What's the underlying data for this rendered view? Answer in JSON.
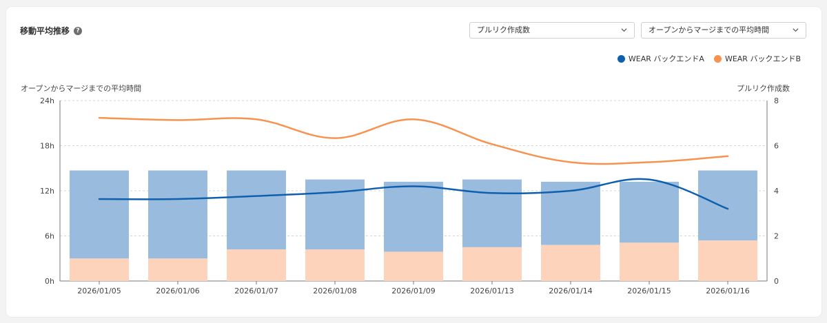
{
  "header": {
    "title": "移動平均推移",
    "help_icon": "help-circle-icon",
    "select_metric": "プルリク作成数",
    "select_period": "オープンからマージまでの平均時間"
  },
  "chart_data": {
    "type": "bar",
    "categories": [
      "2026/01/05",
      "2026/01/06",
      "2026/01/07",
      "2026/01/08",
      "2026/01/09",
      "2026/01/13",
      "2026/01/14",
      "2026/01/15",
      "2026/01/16"
    ],
    "left_axis_label": "オープンからマージまでの平均時間",
    "right_axis_label": "プルリク作成数",
    "left_ticks": [
      "0h",
      "6h",
      "12h",
      "18h",
      "24h"
    ],
    "right_ticks": [
      "0",
      "2",
      "4",
      "6",
      "8"
    ],
    "left_ylim": [
      0,
      24
    ],
    "right_ylim": [
      0,
      8
    ],
    "grid": true,
    "legend_position": "top-right",
    "bars_bottom": {
      "axis": "right",
      "color": "#fdd3bb",
      "values": [
        1.0,
        1.0,
        1.4,
        1.4,
        1.3,
        1.5,
        1.6,
        1.7,
        1.8
      ]
    },
    "bars_top": {
      "axis": "right",
      "color": "#99bbde",
      "values": [
        3.9,
        3.9,
        3.5,
        3.1,
        3.1,
        3.0,
        2.8,
        2.7,
        3.1
      ]
    },
    "series": [
      {
        "name": "WEAR バックエンドA",
        "color": "#0f5fae",
        "axis": "left",
        "values": [
          10.9,
          10.9,
          11.3,
          11.8,
          12.6,
          11.7,
          12.0,
          13.5,
          9.6
        ]
      },
      {
        "name": "WEAR バックエンドB",
        "color": "#f7924f",
        "axis": "left",
        "values": [
          21.7,
          21.4,
          21.5,
          19.0,
          21.5,
          18.2,
          15.8,
          15.8,
          16.6
        ]
      }
    ]
  }
}
